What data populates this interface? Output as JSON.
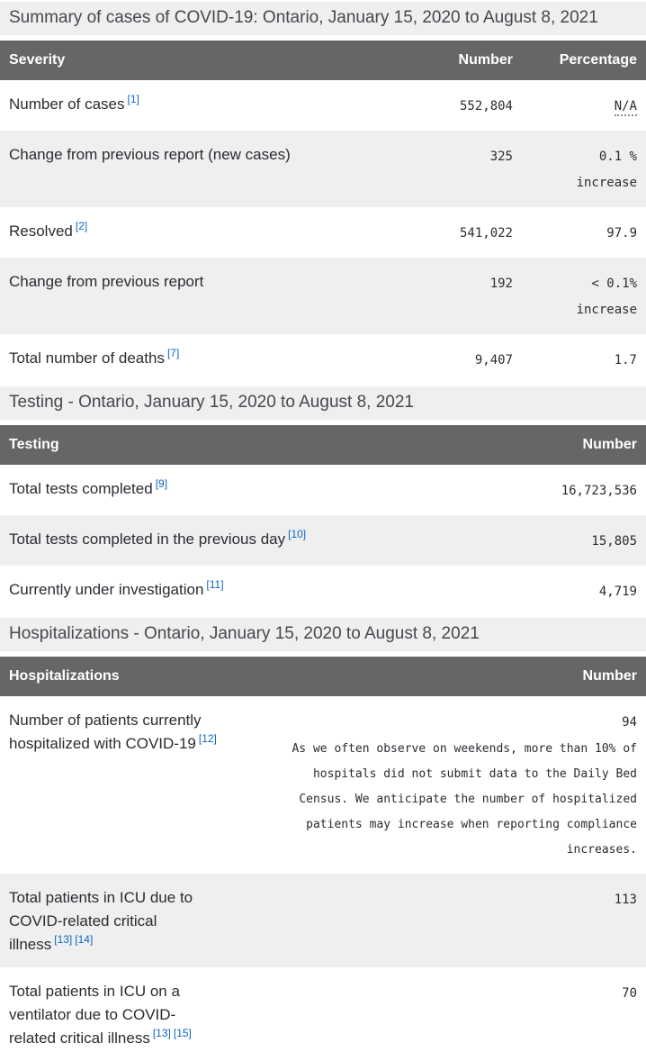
{
  "summary": {
    "caption": "Summary of cases of COVID-19: Ontario, January 15, 2020 to August 8, 2021"
  },
  "severity": {
    "col_severity": "Severity",
    "col_number": "Number",
    "col_percentage": "Percentage",
    "rows": [
      {
        "label": "Number of cases",
        "fn": [
          "[1]"
        ],
        "number": "552,804",
        "pct": "N/A"
      },
      {
        "label": "Change from previous report (new cases)",
        "number": "325",
        "pct": "0.1 %",
        "pct2": "increase"
      },
      {
        "label": "Resolved",
        "fn": [
          "[2]"
        ],
        "number": "541,022",
        "pct": "97.9"
      },
      {
        "label": "Change from previous report",
        "number": "192",
        "pct": "< 0.1%",
        "pct2": "increase"
      },
      {
        "label": "Total number of deaths",
        "fn": [
          "[7]"
        ],
        "number": "9,407",
        "pct": "1.7"
      }
    ]
  },
  "testing": {
    "caption": "Testing - Ontario, January 15, 2020 to August 8, 2021",
    "col_testing": "Testing",
    "col_number": "Number",
    "rows": [
      {
        "label": "Total tests completed",
        "fn": [
          "[9]"
        ],
        "number": "16,723,536"
      },
      {
        "label": "Total tests completed in the previous day",
        "fn": [
          "[10]"
        ],
        "number": "15,805"
      },
      {
        "label": "Currently under investigation",
        "fn": [
          "[11]"
        ],
        "number": "4,719"
      }
    ]
  },
  "hospitalizations": {
    "caption": "Hospitalizations - Ontario, January 15, 2020 to August 8, 2021",
    "col_hospitalizations": "Hospitalizations",
    "col_number": "Number",
    "rows": [
      {
        "label": "Number of patients currently hospitalized with COVID-19",
        "fn": [
          "[12]"
        ],
        "number": "94",
        "note": "As we often observe on weekends, more than 10% of hospitals did not submit data to the Daily Bed Census. We anticipate the number of hospitalized patients may increase when reporting compliance increases."
      },
      {
        "label": "Total patients in ICU due to COVID-related critical illness",
        "fn": [
          "[13]",
          "[14]"
        ],
        "number": "113"
      },
      {
        "label": "Total patients in ICU on a ventilator due to COVID-related critical illness",
        "fn": [
          "[13]",
          "[15]"
        ],
        "number": "70"
      }
    ]
  },
  "colors": {
    "header_bg": "#666666",
    "caption_bg": "#efefef",
    "zebra_bg": "#efefef",
    "link_blue": "#0d66c2",
    "text": "#2b2b33"
  }
}
